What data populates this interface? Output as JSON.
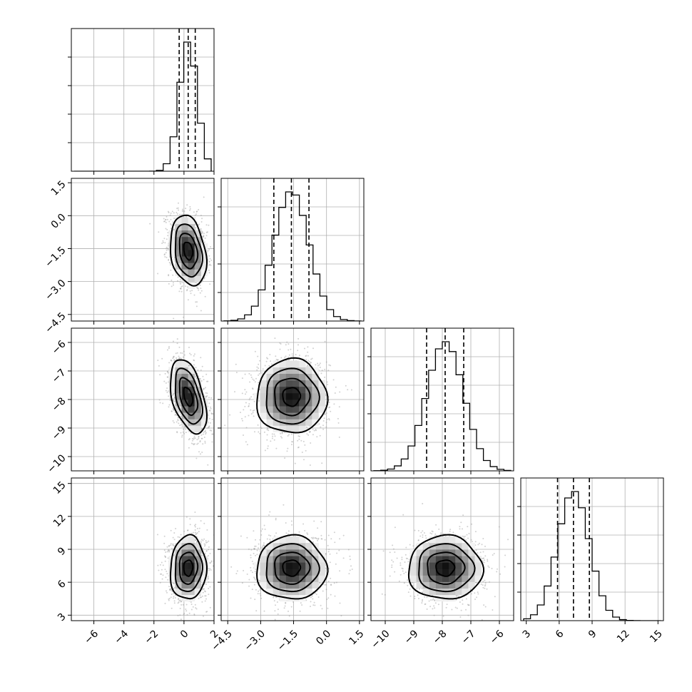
{
  "chart_data": {
    "type": "corner",
    "parameters": [
      {
        "range": [
          -7.5,
          2.0
        ],
        "hist_ticks": [
          -6,
          -4,
          -2,
          0,
          2
        ],
        "tick_labels": [
          "−6",
          "−4",
          "−2",
          "0",
          "2"
        ],
        "mean": 0.28,
        "sigma": 0.6,
        "quantiles": [
          -0.32,
          0.28,
          0.75
        ]
      },
      {
        "range": [
          -4.8,
          1.7
        ],
        "hist_ticks": [
          -4.5,
          -3.0,
          -1.5,
          0.0,
          1.5
        ],
        "tick_labels": [
          "−4.5",
          "−3.0",
          "−1.5",
          "0.0",
          "1.5"
        ],
        "mean": -1.6,
        "sigma": 0.8,
        "quantiles": [
          -2.4,
          -1.6,
          -0.8
        ]
      },
      {
        "range": [
          -10.5,
          -5.5
        ],
        "hist_ticks": [
          -10,
          -9,
          -8,
          -7,
          -6
        ],
        "tick_labels": [
          "−10",
          "−9",
          "−8",
          "−7",
          "−6"
        ],
        "mean": -7.9,
        "sigma": 0.65,
        "quantiles": [
          -8.55,
          -7.9,
          -7.25
        ]
      },
      {
        "range": [
          2.5,
          15.5
        ],
        "hist_ticks": [
          3,
          6,
          9,
          12,
          15
        ],
        "tick_labels": [
          "3",
          "6",
          "9",
          "12",
          "15"
        ],
        "mean": 7.3,
        "sigma": 1.45,
        "quantiles": [
          5.85,
          7.3,
          8.75
        ]
      }
    ],
    "correlations": {
      "1-0": -0.25,
      "2-0": -0.45,
      "2-1": 0.0,
      "3-0": 0.05,
      "3-1": 0.0,
      "3-2": 0.0
    },
    "title": "",
    "grid": true
  }
}
